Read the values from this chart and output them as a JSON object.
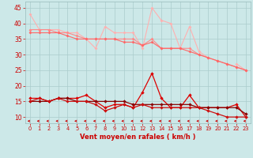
{
  "x": [
    0,
    1,
    2,
    3,
    4,
    5,
    6,
    7,
    8,
    9,
    10,
    11,
    12,
    13,
    14,
    15,
    16,
    17,
    18,
    19,
    20,
    21,
    22,
    23
  ],
  "line1": [
    43,
    38,
    38,
    38,
    37,
    37,
    35,
    32,
    39,
    37,
    37,
    37,
    32,
    45,
    41,
    40,
    32,
    39,
    31,
    29,
    null,
    null,
    27,
    25
  ],
  "line2": [
    38,
    38,
    38,
    37,
    37,
    36,
    35,
    35,
    35,
    35,
    35,
    35,
    33,
    35,
    32,
    32,
    32,
    32,
    30,
    29,
    28,
    27,
    26,
    25
  ],
  "line3": [
    37,
    37,
    37,
    37,
    36,
    35,
    35,
    35,
    35,
    35,
    34,
    34,
    33,
    34,
    32,
    32,
    32,
    31,
    30,
    29,
    28,
    27,
    26,
    25
  ],
  "line4": [
    16,
    16,
    15,
    16,
    16,
    16,
    17,
    15,
    13,
    14,
    14,
    13,
    18,
    24,
    16,
    13,
    13,
    17,
    13,
    13,
    13,
    13,
    14,
    10
  ],
  "line5": [
    15,
    15,
    15,
    16,
    16,
    15,
    15,
    15,
    15,
    15,
    15,
    14,
    14,
    14,
    14,
    14,
    14,
    14,
    13,
    13,
    13,
    13,
    13,
    11
  ],
  "line6": [
    15,
    16,
    15,
    16,
    15,
    15,
    15,
    14,
    12,
    13,
    14,
    13,
    14,
    13,
    13,
    13,
    13,
    13,
    13,
    12,
    11,
    10,
    10,
    10
  ],
  "bg_color": "#cce8e8",
  "grid_color": "#aacccc",
  "line1_color": "#ffb0b0",
  "line2_color": "#ff8888",
  "line3_color": "#ff6666",
  "line4_color": "#dd0000",
  "line5_color": "#880000",
  "line6_color": "#cc1111",
  "arrow_color": "#cc0000",
  "xlabel": "Vent moyen/en rafales ( km/h )",
  "ylim": [
    8,
    47
  ],
  "xlim": [
    -0.5,
    23.5
  ],
  "yticks": [
    10,
    15,
    20,
    25,
    30,
    35,
    40,
    45
  ],
  "xticks": [
    0,
    1,
    2,
    3,
    4,
    5,
    6,
    7,
    8,
    9,
    10,
    11,
    12,
    13,
    14,
    15,
    16,
    17,
    18,
    19,
    20,
    21,
    22,
    23
  ],
  "tick_color": "#cc0000",
  "xlabel_color": "#cc0000"
}
